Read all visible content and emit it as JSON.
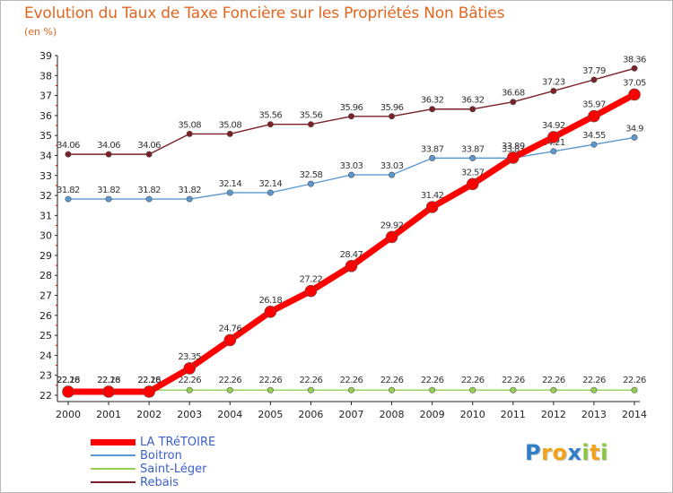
{
  "chart_data": {
    "type": "line",
    "title": "Evolution du Taux de Taxe Foncière sur les Propriétés Non Bâties",
    "ylabel": "(en %)",
    "xlabel": "",
    "x": [
      "2000",
      "2001",
      "2002",
      "2003",
      "2004",
      "2005",
      "2006",
      "2007",
      "2008",
      "2009",
      "2010",
      "2011",
      "2012",
      "2013",
      "2014"
    ],
    "ylim": [
      22,
      39
    ],
    "yticks": [
      22,
      23,
      24,
      25,
      26,
      27,
      28,
      29,
      30,
      31,
      32,
      33,
      34,
      35,
      36,
      37,
      38,
      39
    ],
    "grid": false,
    "legend_position": "bottom-left",
    "series": [
      {
        "name": "Rebais",
        "color": "#7b2027",
        "values": [
          34.06,
          34.06,
          34.06,
          35.08,
          35.08,
          35.56,
          35.56,
          35.96,
          35.96,
          36.32,
          36.32,
          36.68,
          37.23,
          37.79,
          38.36
        ],
        "labels": [
          "34.06",
          "34.06",
          "34.06",
          "35.08",
          "35.08",
          "35.56",
          "35.56",
          "35.96",
          "35.96",
          "36.32",
          "36.32",
          "36.68",
          "37.23",
          "37.79",
          "38.36"
        ]
      },
      {
        "name": "Boitron",
        "color": "#5b98cf",
        "values": [
          31.82,
          31.82,
          31.82,
          31.82,
          32.14,
          32.14,
          32.58,
          33.03,
          33.03,
          33.87,
          33.87,
          33.87,
          34.21,
          34.55,
          34.9
        ],
        "labels": [
          "31.82",
          "31.82",
          "31.82",
          "31.82",
          "32.14",
          "32.14",
          "32.58",
          "33.03",
          "33.03",
          "33.87",
          "33.87",
          "33.87",
          "34.21",
          "34.55",
          "34.9"
        ]
      },
      {
        "name": "Saint-Léger",
        "color": "#93d04f",
        "values": [
          22.26,
          22.26,
          22.26,
          22.26,
          22.26,
          22.26,
          22.26,
          22.26,
          22.26,
          22.26,
          22.26,
          22.26,
          22.26,
          22.26,
          22.26
        ],
        "labels": [
          "22.26",
          "22.26",
          "22.26",
          "22.26",
          "22.26",
          "22.26",
          "22.26",
          "22.26",
          "22.26",
          "22.26",
          "22.26",
          "22.26",
          "22.26",
          "22.26",
          "22.26"
        ]
      },
      {
        "name": "LA TRéTOIRE",
        "color": "#ff0000",
        "values": [
          22.18,
          22.18,
          22.18,
          23.35,
          24.76,
          26.18,
          27.22,
          28.47,
          29.92,
          31.42,
          32.57,
          33.89,
          34.92,
          35.97,
          37.05
        ],
        "labels": [
          "22.18",
          "22.18",
          "22.18",
          "23.35",
          "24.76",
          "26.18",
          "27.22",
          "28.47",
          "29.92",
          "31.42",
          "32.57",
          "33.89",
          "34.92",
          "35.97",
          "37.05"
        ]
      }
    ],
    "legend": [
      {
        "name": "LA TRéTOIRE",
        "color": "#ff0000",
        "text_color": "#3b5fcf"
      },
      {
        "name": "Boitron",
        "color": "#5b98cf",
        "text_color": "#3b5fcf"
      },
      {
        "name": "Saint-Léger",
        "color": "#93d04f",
        "text_color": "#3b5fcf"
      },
      {
        "name": "Rebais",
        "color": "#7b2027",
        "text_color": "#3b5fcf"
      }
    ]
  },
  "brand": {
    "letters": [
      "P",
      "r",
      "o",
      "x",
      "i",
      "t",
      "i"
    ],
    "colors": [
      "#2f7fc9",
      "#f2a31b",
      "#f2a31b",
      "#2f7fc9",
      "#8cc63f",
      "#f2a31b",
      "#8cc63f"
    ]
  }
}
